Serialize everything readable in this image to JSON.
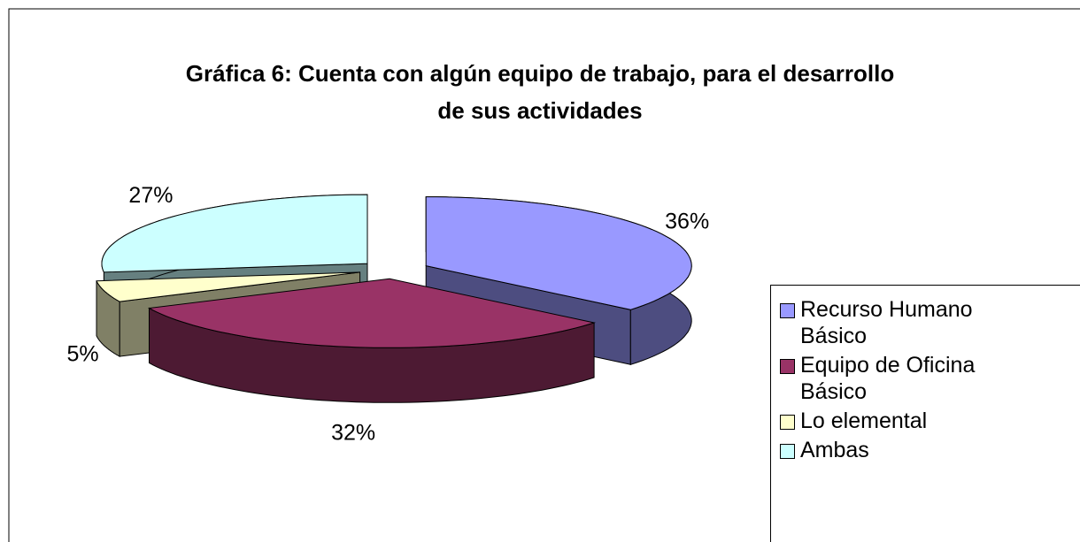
{
  "chart_data": {
    "type": "pie",
    "title": "Gráfica 6: Cuenta con algún equipo de trabajo, para el desarrollo de sus actividades",
    "categories": [
      "Recurso Humano Básico",
      "Equipo de Oficina Básico",
      "Lo elemental",
      "Ambas"
    ],
    "values": [
      36,
      32,
      5,
      27
    ],
    "value_labels": [
      "36%",
      "32%",
      "5%",
      "27%"
    ],
    "colors": [
      "#9999ff",
      "#993366",
      "#ffffcc",
      "#ccffff"
    ],
    "legend": "right"
  }
}
